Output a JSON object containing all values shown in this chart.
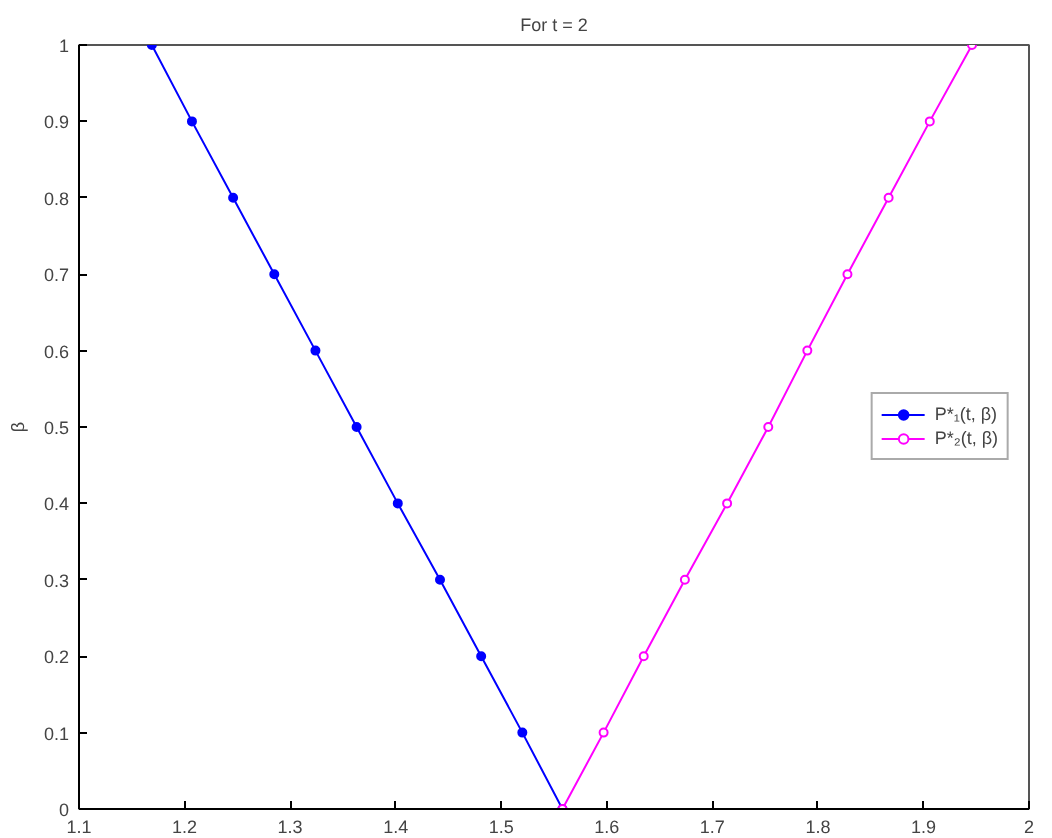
{
  "chart_data": {
    "type": "line",
    "title": "For t = 2",
    "ylabel": "β",
    "xlim": [
      1.1,
      2
    ],
    "xticks": [
      1.1,
      1.2,
      1.3,
      1.4,
      1.5,
      1.6,
      1.7,
      1.8,
      1.9,
      2
    ],
    "ylim": [
      0,
      1
    ],
    "yticks": [
      0,
      0.1,
      0.2,
      0.3,
      0.4,
      0.5,
      0.6,
      0.7,
      0.8,
      0.9,
      1
    ],
    "grid": false,
    "legend": "right",
    "marker": "circle",
    "line_style": "solid",
    "series": [
      {
        "name": "P*₁(t, β)",
        "color": "#0000ff",
        "x": [
          1.169,
          1.207,
          1.246,
          1.285,
          1.324,
          1.363,
          1.402,
          1.442,
          1.481,
          1.52,
          1.558
        ],
        "values": [
          1,
          0.9,
          0.8,
          0.7,
          0.6,
          0.5,
          0.4,
          0.3,
          0.2,
          0.1,
          0
        ]
      },
      {
        "name": "P*₂(t, β)",
        "color": "#ff00ff",
        "x": [
          1.558,
          1.597,
          1.635,
          1.674,
          1.714,
          1.753,
          1.79,
          1.828,
          1.867,
          1.906,
          1.946
        ],
        "values": [
          0,
          0.1,
          0.2,
          0.3,
          0.4,
          0.5,
          0.6,
          0.7,
          0.8,
          0.9,
          1
        ]
      }
    ]
  }
}
